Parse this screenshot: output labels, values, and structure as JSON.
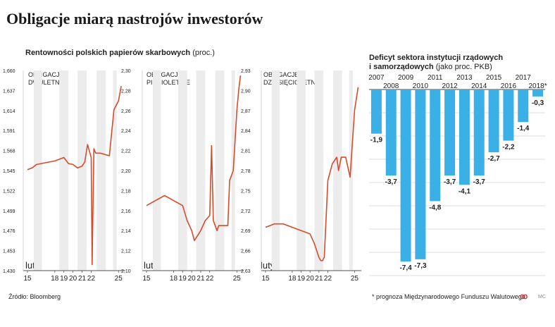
{
  "title": "Obligacje miarą nastrojów inwestorów",
  "left_subtitle": {
    "main": "Rentowności polskich papierów skarbowych",
    "unit": "(proc.)"
  },
  "right_subtitle": {
    "line1": "Deficyt sektora instytucji rządowych",
    "line2_main": "i samorządowych",
    "line2_unit": "(jako proc. PKB)"
  },
  "source": "Źródło:  Bloomberg",
  "footnote": "* prognoza Międzynarodowego Funduszu Walutowego",
  "logo": "ꝏ",
  "logo_small": "MC",
  "colors": {
    "line": "#d94a2b",
    "bar": "#3ab0e6",
    "band": "#ececec",
    "grid": "#bbbbbb",
    "text": "#222222"
  },
  "chart_data": [
    {
      "type": "line",
      "title": "OBLIGACJE\nDWULETNIE",
      "month_label": "luty",
      "x_ticks": [
        "15",
        "18",
        "19",
        "20",
        "21",
        "22",
        "25"
      ],
      "y_ticks": [
        "1,660",
        "1,637",
        "1,614",
        "1,591",
        "1,568",
        "1,545",
        "1,522",
        "1,499",
        "1,476",
        "1,453",
        "1,430"
      ],
      "ylim": [
        1.43,
        1.66
      ],
      "x": [
        15,
        15.5,
        16,
        17,
        18,
        19,
        19.5,
        20,
        20.5,
        21,
        21.3,
        21.6,
        22,
        22.1,
        22.3,
        22.5,
        23,
        24,
        24.5,
        25,
        25.3
      ],
      "y": [
        1.546,
        1.548,
        1.552,
        1.554,
        1.556,
        1.56,
        1.553,
        1.552,
        1.548,
        1.55,
        1.555,
        1.575,
        1.56,
        1.437,
        1.57,
        1.565,
        1.565,
        1.562,
        1.615,
        1.625,
        1.642
      ]
    },
    {
      "type": "line",
      "title": "OBLIGACJE\nPIĘCIOLETNIE",
      "month_label": "luty",
      "x_ticks": [
        "15",
        "18",
        "19",
        "20",
        "21",
        "22",
        "25"
      ],
      "y_ticks": [
        "2,30",
        "2,28",
        "2,26",
        "2,24",
        "2,22",
        "2,20",
        "2,18",
        "2,16",
        "2,14",
        "2,12",
        "2,10"
      ],
      "ylim": [
        2.1,
        2.3
      ],
      "x": [
        15,
        16,
        17,
        18,
        19,
        19.5,
        20,
        20.3,
        21,
        21.5,
        22,
        22.2,
        22.4,
        22.8,
        23,
        24,
        24.2,
        24.6,
        25,
        25.2,
        25.4
      ],
      "y": [
        2.165,
        2.17,
        2.175,
        2.17,
        2.165,
        2.15,
        2.14,
        2.13,
        2.14,
        2.15,
        2.155,
        2.225,
        2.15,
        2.14,
        2.145,
        2.145,
        2.19,
        2.2,
        2.26,
        2.28,
        2.295
      ]
    },
    {
      "type": "line",
      "title": "OBLIGACJE\nDZIESIĘCIOLETNIE",
      "month_label": "luty",
      "x_ticks": [
        "15",
        "18",
        "19",
        "20",
        "21",
        "22",
        "25"
      ],
      "y_ticks": [
        "2,93",
        "2,90",
        "2,87",
        "2,84",
        "2,81",
        "2,78",
        "2,75",
        "2,72",
        "2,69",
        "2,66",
        "2,63"
      ],
      "ylim": [
        2.63,
        2.93
      ],
      "x": [
        15,
        16,
        17,
        18,
        19,
        20,
        20.5,
        21,
        21.2,
        21.4,
        21.6,
        22,
        22.5,
        23,
        23.2,
        23.5,
        24,
        24.5,
        25,
        25.4
      ],
      "y": [
        2.695,
        2.7,
        2.7,
        2.695,
        2.69,
        2.685,
        2.67,
        2.65,
        2.645,
        2.645,
        2.65,
        2.765,
        2.79,
        2.8,
        2.78,
        2.8,
        2.8,
        2.77,
        2.87,
        2.905
      ]
    },
    {
      "type": "bar",
      "title": "Deficyt sektora instytucji rządowych i samorządowych",
      "categories": [
        "2007",
        "2008",
        "2009",
        "2010",
        "2011",
        "2012",
        "2013",
        "2014",
        "2015",
        "2016",
        "2017",
        "2018*"
      ],
      "values": [
        -1.9,
        -3.7,
        -7.4,
        -7.3,
        -4.8,
        -3.7,
        -4.1,
        -3.7,
        -2.7,
        -2.2,
        -1.4,
        -0.3
      ],
      "value_labels": [
        "-1,9",
        "-3,7",
        "-7,4",
        "-7,3",
        "-4,8",
        "-3,7",
        "-4,1",
        "-3,7",
        "-2,7",
        "-2,2",
        "-1,4",
        "-0,3"
      ],
      "ylim": [
        -8,
        0
      ]
    }
  ]
}
